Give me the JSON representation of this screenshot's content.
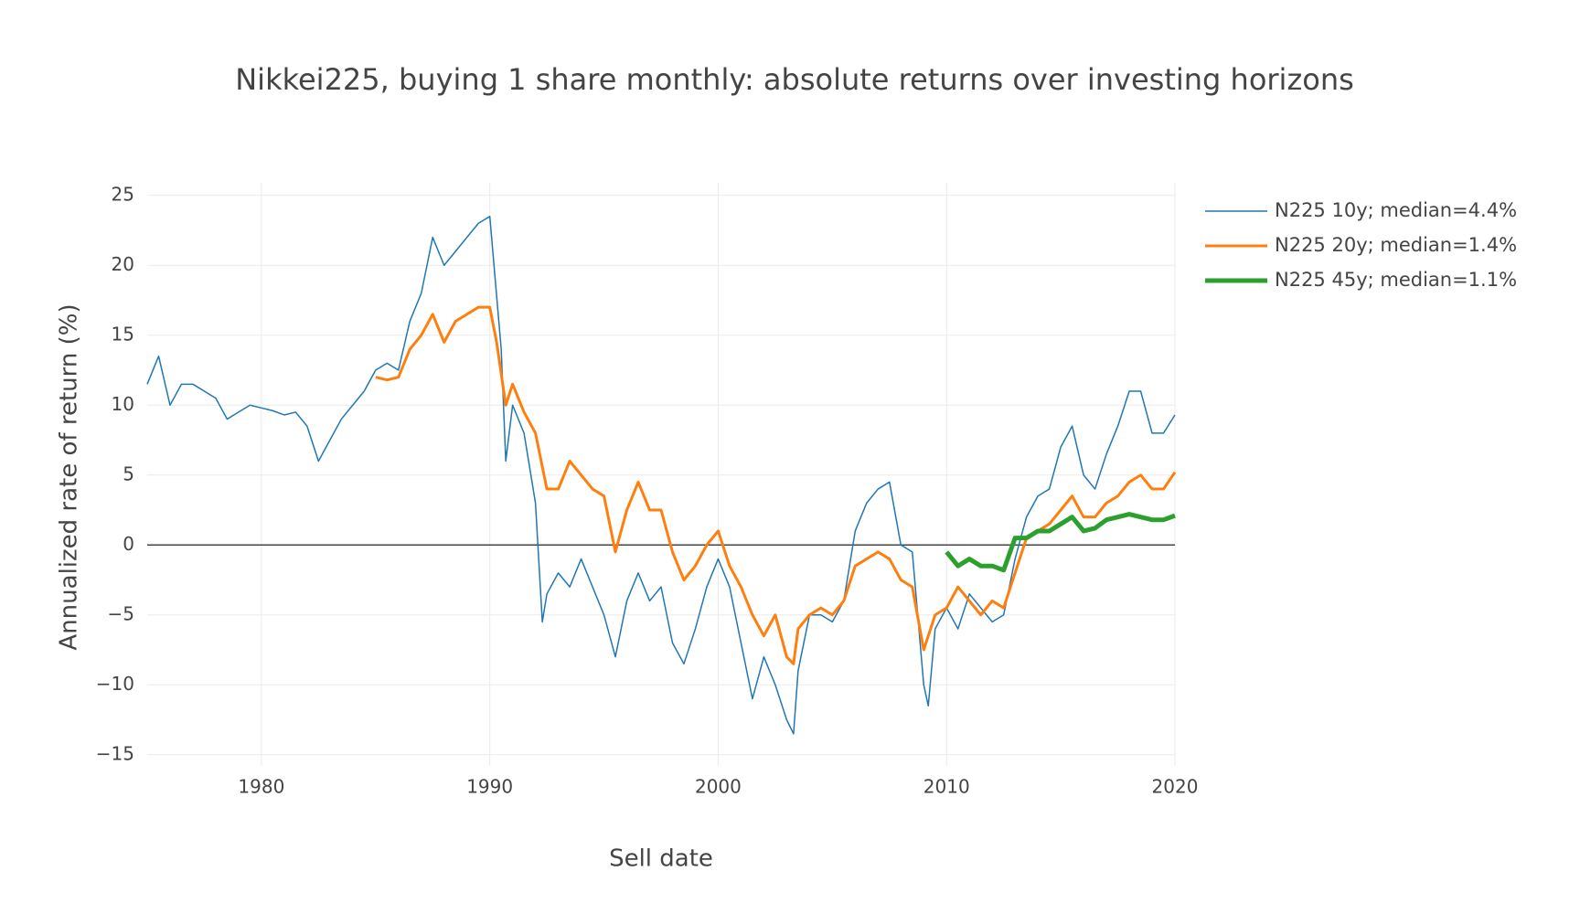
{
  "chart_data": {
    "type": "line",
    "title": "Nikkei225, buying 1 share monthly: absolute returns over investing horizons",
    "x_label": "Sell date",
    "y_label": "Annualized rate of return (%)",
    "xlim": [
      1975,
      2020
    ],
    "xticks": [
      1980,
      1990,
      2000,
      2010,
      2020
    ],
    "ylim": [
      -15.8,
      25.9
    ],
    "yticks": [
      {
        "value": -15,
        "label": "−15"
      },
      {
        "value": -10,
        "label": "−10"
      },
      {
        "value": -5,
        "label": "−5"
      },
      0,
      5,
      10,
      15,
      20,
      25
    ],
    "grid": true,
    "zeroline": true,
    "legend": "top-right",
    "series": [
      {
        "name": "N225 10y; median=4.4%",
        "color": "#1f77b4",
        "x": [
          1975,
          1975.5,
          1976,
          1976.5,
          1977,
          1977.5,
          1978,
          1978.5,
          1979,
          1979.5,
          1980,
          1980.5,
          1981,
          1981.5,
          1982,
          1982.5,
          1983,
          1983.5,
          1984,
          1984.5,
          1985,
          1985.5,
          1986,
          1986.5,
          1987,
          1987.5,
          1988,
          1988.5,
          1989,
          1989.5,
          1990,
          1990.5,
          1990.7,
          1991,
          1991.5,
          1992,
          1992.3,
          1992.5,
          1993,
          1993.5,
          1994,
          1994.5,
          1995,
          1995.5,
          1996,
          1996.5,
          1997,
          1997.5,
          1998,
          1998.5,
          1999,
          1999.5,
          2000,
          2000.5,
          2001,
          2001.5,
          2002,
          2002.5,
          2003,
          2003.3,
          2003.5,
          2004,
          2004.5,
          2005,
          2005.5,
          2006,
          2006.5,
          2007,
          2007.5,
          2008,
          2008.5,
          2009,
          2009.2,
          2009.5,
          2010,
          2010.5,
          2011,
          2011.5,
          2012,
          2012.5,
          2013,
          2013.5,
          2014,
          2014.5,
          2015,
          2015.5,
          2016,
          2016.5,
          2017,
          2017.5,
          2018,
          2018.5,
          2019,
          2019.5,
          2020
        ],
        "values": [
          11.5,
          13.5,
          10,
          11.5,
          11.5,
          11,
          10.5,
          9,
          9.5,
          10,
          9.8,
          9.6,
          9.3,
          9.5,
          8.5,
          6,
          7.5,
          9,
          10,
          11,
          12.5,
          13,
          12.5,
          16,
          18,
          22,
          20,
          21,
          22,
          23,
          23.5,
          14,
          6,
          10,
          8,
          3,
          -5.5,
          -3.5,
          -2,
          -3,
          -1,
          -3,
          -5,
          -8,
          -4,
          -2,
          -4,
          -3,
          -7,
          -8.5,
          -6,
          -3,
          -1,
          -3,
          -7,
          -11,
          -8,
          -10,
          -12.5,
          -13.5,
          -9,
          -5,
          -5,
          -5.5,
          -4,
          1,
          3,
          4,
          4.5,
          0,
          -0.5,
          -10,
          -11.5,
          -6,
          -4.5,
          -6,
          -3.5,
          -4.5,
          -5.5,
          -5,
          -1,
          2,
          3.5,
          4,
          7,
          8.5,
          5,
          4,
          6.5,
          8.5,
          11,
          11,
          8,
          8,
          9.3
        ]
      },
      {
        "name": "N225 20y; median=1.4%",
        "color": "#ff7f0e",
        "x": [
          1985,
          1985.5,
          1986,
          1986.5,
          1987,
          1987.5,
          1988,
          1988.5,
          1989,
          1989.5,
          1990,
          1990.3,
          1990.7,
          1991,
          1991.5,
          1992,
          1992.5,
          1993,
          1993.5,
          1994,
          1994.5,
          1995,
          1995.5,
          1996,
          1996.5,
          1997,
          1997.5,
          1998,
          1998.5,
          1999,
          1999.5,
          2000,
          2000.5,
          2001,
          2001.5,
          2002,
          2002.5,
          2003,
          2003.3,
          2003.5,
          2004,
          2004.5,
          2005,
          2005.5,
          2006,
          2006.5,
          2007,
          2007.5,
          2008,
          2008.5,
          2009,
          2009.5,
          2010,
          2010.5,
          2011,
          2011.5,
          2012,
          2012.5,
          2013,
          2013.5,
          2014,
          2014.5,
          2015,
          2015.5,
          2016,
          2016.5,
          2017,
          2017.5,
          2018,
          2018.5,
          2019,
          2019.5,
          2020
        ],
        "values": [
          12,
          11.8,
          12,
          14,
          15,
          16.5,
          14.5,
          16,
          16.5,
          17,
          17,
          14.5,
          10,
          11.5,
          9.5,
          8,
          4,
          4,
          6,
          5,
          4,
          3.5,
          -0.5,
          2.5,
          4.5,
          2.5,
          2.5,
          -0.5,
          -2.5,
          -1.5,
          0,
          1,
          -1.5,
          -3,
          -5,
          -6.5,
          -5,
          -8,
          -8.5,
          -6,
          -5,
          -4.5,
          -5,
          -4,
          -1.5,
          -1,
          -0.5,
          -1,
          -2.5,
          -3,
          -7.5,
          -5,
          -4.5,
          -3,
          -4,
          -5,
          -4,
          -4.5,
          -2,
          0.5,
          1,
          1.5,
          2.5,
          3.5,
          2,
          2,
          3,
          3.5,
          4.5,
          5,
          4,
          4,
          5.2
        ]
      },
      {
        "name": "N225 45y; median=1.1%",
        "color": "#2ca02c",
        "x": [
          2010,
          2010.5,
          2011,
          2011.5,
          2012,
          2012.5,
          2013,
          2013.5,
          2014,
          2014.5,
          2015,
          2015.5,
          2016,
          2016.5,
          2017,
          2017.5,
          2018,
          2018.5,
          2019,
          2019.5,
          2020
        ],
        "values": [
          -0.5,
          -1.5,
          -1,
          -1.5,
          -1.5,
          -1.8,
          0.5,
          0.5,
          1,
          1,
          1.5,
          2,
          1,
          1.2,
          1.8,
          2,
          2.2,
          2,
          1.8,
          1.8,
          2.1
        ]
      }
    ]
  }
}
